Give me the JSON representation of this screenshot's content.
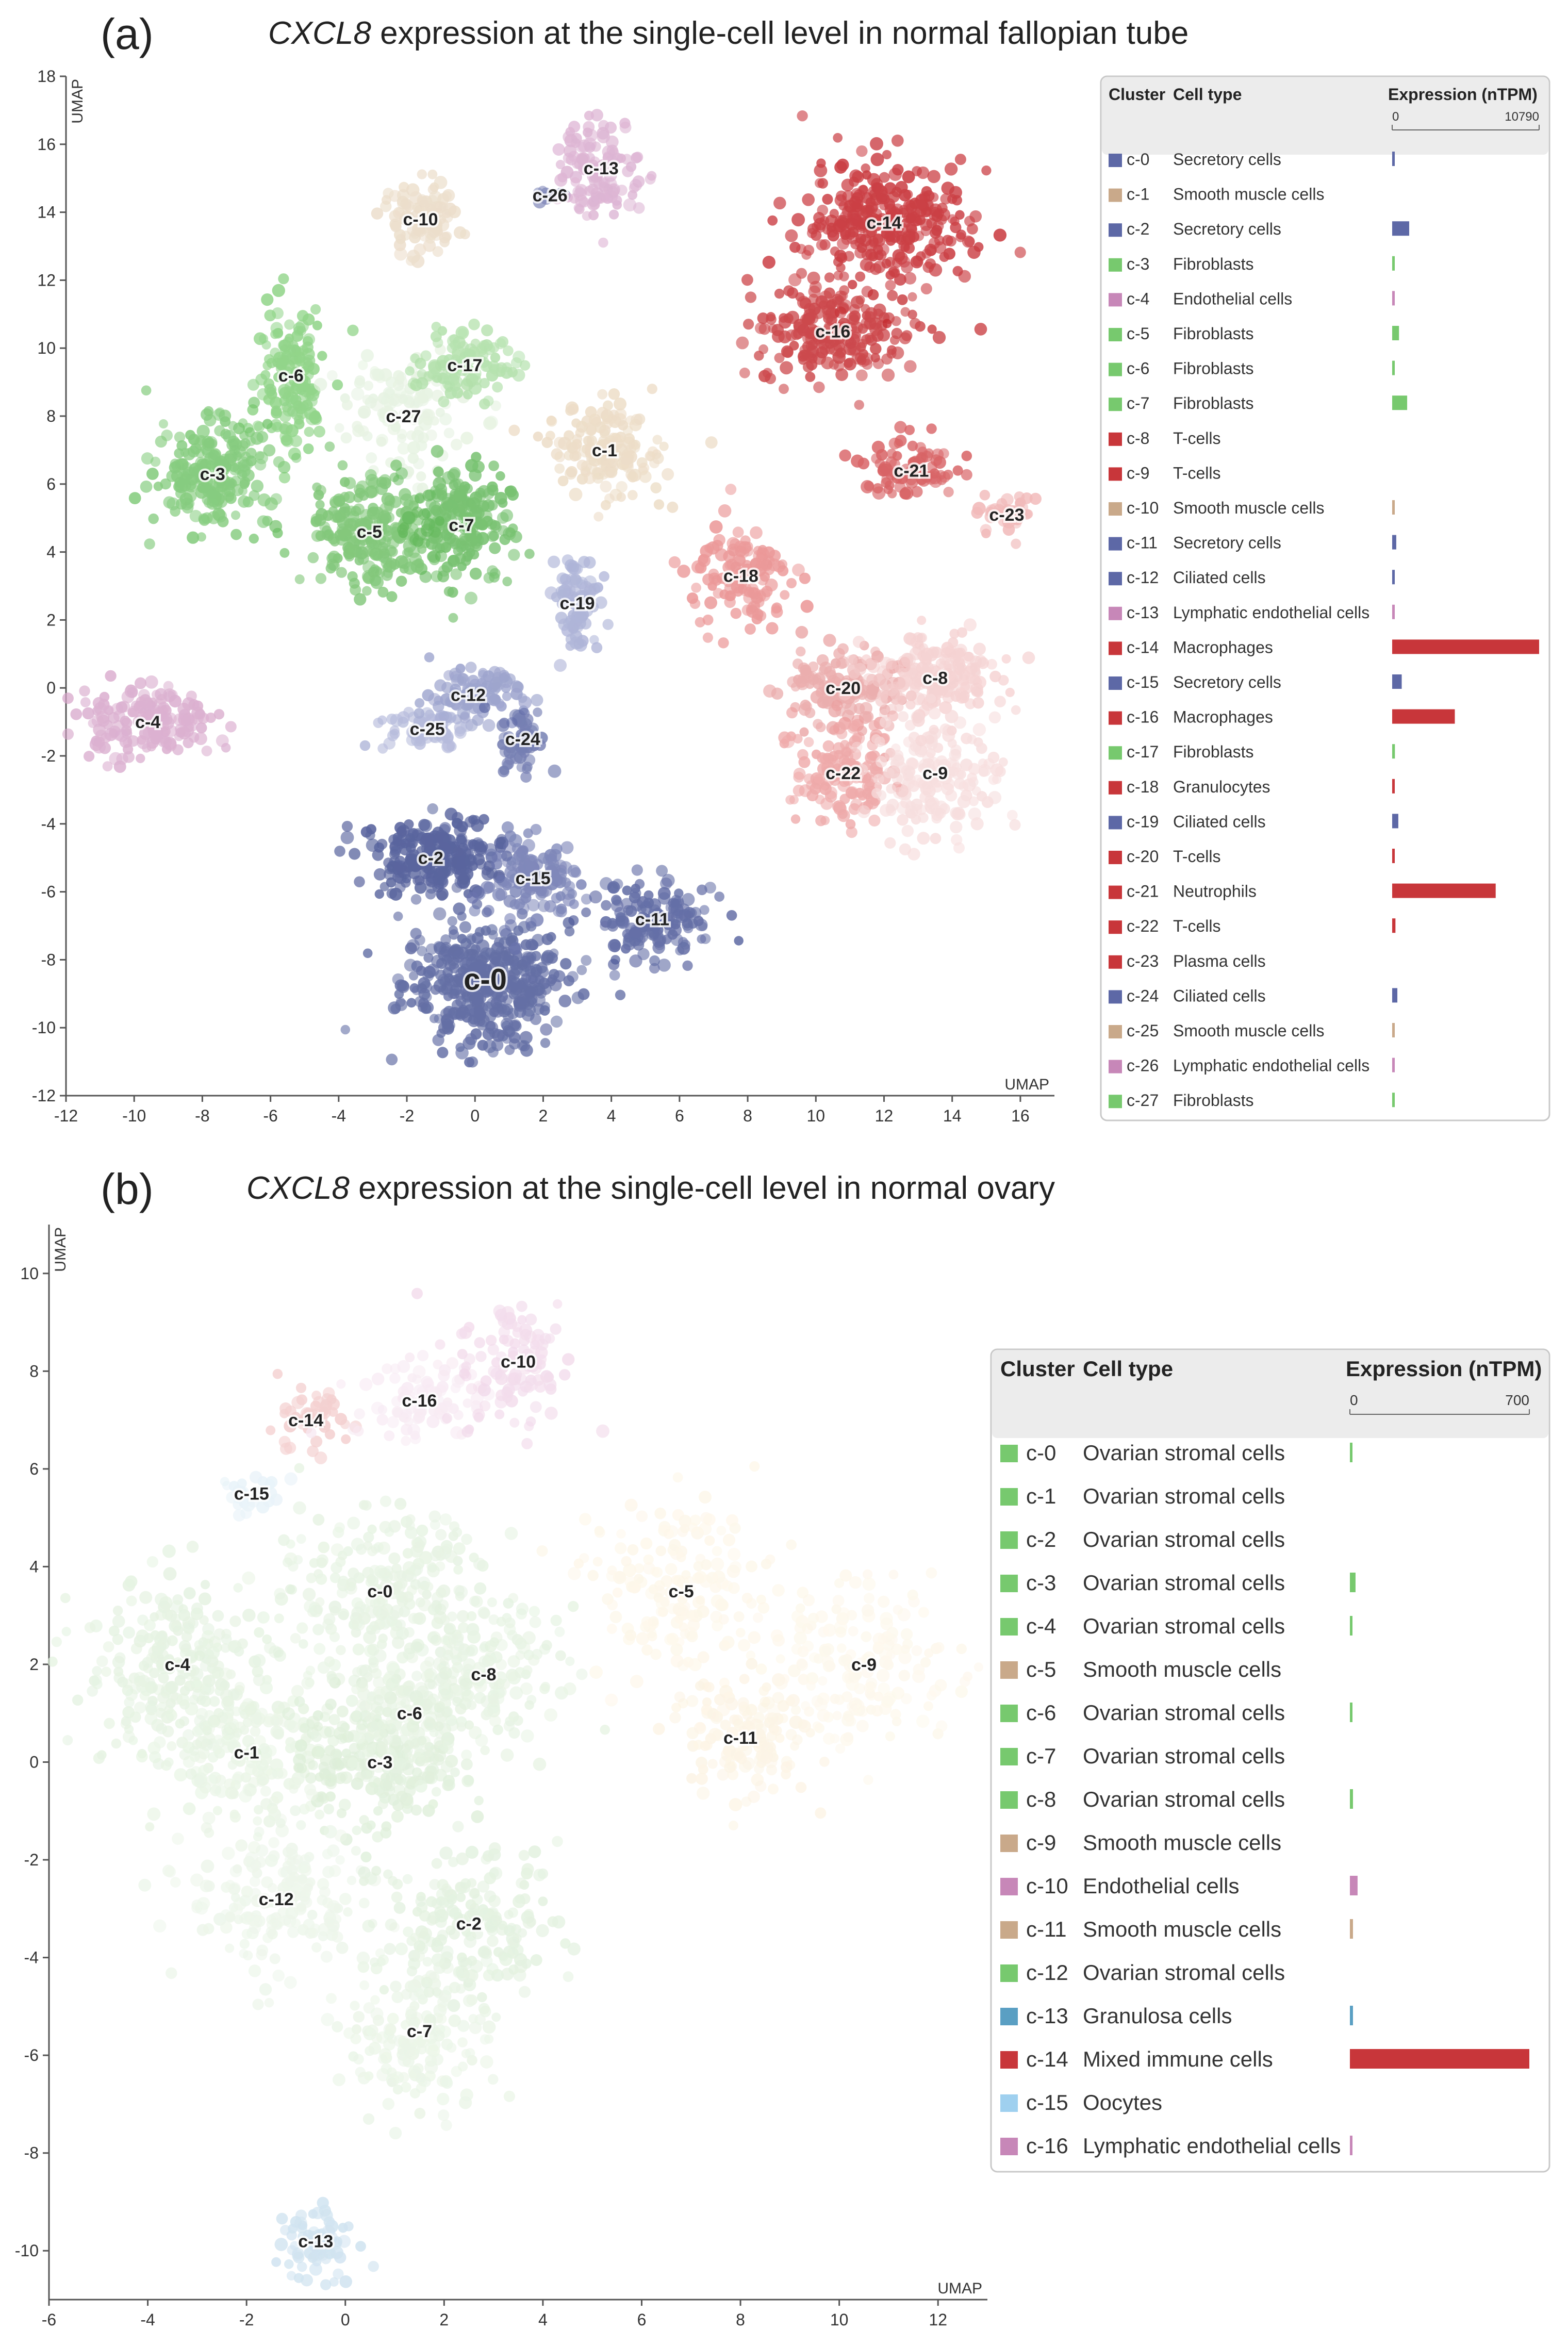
{
  "colors": {
    "secretory": "#5d68a6",
    "smooth_muscle": "#c9a98a",
    "fibroblast": "#77c96e",
    "endothelial": "#c787b8",
    "immune": "#c8363a",
    "ciliated": "#5d68a6",
    "granulosa": "#5a9fc3",
    "oocyte": "#9fd0ef",
    "ovarian_stromal": "#77c96e"
  },
  "chart_data": [
    {
      "type": "scatter",
      "panel_letter": "(a)",
      "title_gene": "CXCL8",
      "title_rest": " expression at the single-cell level in normal fallopian tube",
      "xlabel": "UMAP",
      "ylabel": "UMAP",
      "xlim": [
        -12,
        17
      ],
      "ylim": [
        -12,
        18
      ],
      "xticks": [
        "-12",
        "-10",
        "-8",
        "-6",
        "-4",
        "-2",
        "0",
        "2",
        "4",
        "6",
        "8",
        "10",
        "12",
        "14",
        "16"
      ],
      "yticks": [
        "-12",
        "-10",
        "-8",
        "-6",
        "-4",
        "-2",
        "0",
        "2",
        "4",
        "6",
        "8",
        "10",
        "12",
        "14",
        "16",
        "18"
      ],
      "clusters": [
        {
          "label": "c-0",
          "x": 0.3,
          "y": -8.7,
          "color": "#4a5796",
          "spread": [
            2.2,
            1.6
          ],
          "n": 420,
          "big": true
        },
        {
          "label": "c-2",
          "x": -1.3,
          "y": -5.0,
          "color": "#3e4b8e",
          "spread": [
            1.7,
            1.0
          ],
          "n": 260
        },
        {
          "label": "c-15",
          "x": 1.7,
          "y": -5.6,
          "color": "#6a74ae",
          "spread": [
            1.1,
            1.0
          ],
          "n": 140
        },
        {
          "label": "c-11",
          "x": 5.2,
          "y": -6.8,
          "color": "#4b5798",
          "spread": [
            1.7,
            1.0
          ],
          "n": 160
        },
        {
          "label": "c-12",
          "x": -0.2,
          "y": -0.2,
          "color": "#8e96c6",
          "spread": [
            1.4,
            0.7
          ],
          "n": 110
        },
        {
          "label": "c-25",
          "x": -1.4,
          "y": -1.2,
          "color": "#aab0d6",
          "spread": [
            1.0,
            0.6
          ],
          "n": 70
        },
        {
          "label": "c-24",
          "x": 1.4,
          "y": -1.5,
          "color": "#5f6aa6",
          "spread": [
            0.6,
            0.8
          ],
          "n": 60
        },
        {
          "label": "c-19",
          "x": 3.0,
          "y": 2.5,
          "color": "#a2a9d2",
          "spread": [
            0.6,
            1.4
          ],
          "n": 80
        },
        {
          "label": "c-26",
          "x": 2.2,
          "y": 14.5,
          "color": "#6b74ad",
          "spread": [
            0.3,
            0.2
          ],
          "n": 10
        },
        {
          "label": "c-1",
          "x": 3.8,
          "y": 7.0,
          "color": "#ead8bf",
          "spread": [
            1.6,
            1.2
          ],
          "n": 160
        },
        {
          "label": "c-10",
          "x": -1.6,
          "y": 13.8,
          "color": "#e9d9c3",
          "spread": [
            1.0,
            1.0
          ],
          "n": 100
        },
        {
          "label": "c-13",
          "x": 3.7,
          "y": 15.3,
          "color": "#d8a9cd",
          "spread": [
            1.2,
            1.3
          ],
          "n": 120
        },
        {
          "label": "c-4",
          "x": -9.6,
          "y": -1.0,
          "color": "#d6a4c9",
          "spread": [
            1.8,
            1.0
          ],
          "n": 170
        },
        {
          "label": "c-6",
          "x": -5.4,
          "y": 9.2,
          "color": "#7fce76",
          "spread": [
            1.0,
            2.0
          ],
          "n": 150
        },
        {
          "label": "c-3",
          "x": -7.7,
          "y": 6.3,
          "color": "#72c46a",
          "spread": [
            1.5,
            1.4
          ],
          "n": 220
        },
        {
          "label": "c-27",
          "x": -2.1,
          "y": 8.0,
          "color": "#e3f1de",
          "spread": [
            1.8,
            1.6
          ],
          "n": 130
        },
        {
          "label": "c-17",
          "x": -0.3,
          "y": 9.5,
          "color": "#a9dda1",
          "spread": [
            1.3,
            0.9
          ],
          "n": 110
        },
        {
          "label": "c-5",
          "x": -3.1,
          "y": 4.6,
          "color": "#6fbf66",
          "spread": [
            1.7,
            1.5
          ],
          "n": 240
        },
        {
          "label": "c-7",
          "x": -0.4,
          "y": 4.8,
          "color": "#62b85a",
          "spread": [
            1.3,
            1.5
          ],
          "n": 200
        },
        {
          "label": "c-14",
          "x": 12.0,
          "y": 13.7,
          "color": "#c21f25",
          "spread": [
            2.2,
            1.6
          ],
          "n": 320
        },
        {
          "label": "c-16",
          "x": 10.5,
          "y": 10.5,
          "color": "#c42a2e",
          "spread": [
            2.2,
            1.3
          ],
          "n": 220
        },
        {
          "label": "c-21",
          "x": 12.8,
          "y": 6.4,
          "color": "#d2494c",
          "spread": [
            1.2,
            0.9
          ],
          "n": 80
        },
        {
          "label": "c-23",
          "x": 15.6,
          "y": 5.1,
          "color": "#efaeae",
          "spread": [
            0.8,
            0.5
          ],
          "n": 40
        },
        {
          "label": "c-18",
          "x": 7.8,
          "y": 3.3,
          "color": "#e88888",
          "spread": [
            1.3,
            1.4
          ],
          "n": 120
        },
        {
          "label": "c-20",
          "x": 10.8,
          "y": 0.0,
          "color": "#e8a0a0",
          "spread": [
            1.4,
            1.0
          ],
          "n": 140
        },
        {
          "label": "c-8",
          "x": 13.5,
          "y": 0.3,
          "color": "#f4cccc",
          "spread": [
            1.8,
            1.2
          ],
          "n": 180
        },
        {
          "label": "c-22",
          "x": 10.8,
          "y": -2.5,
          "color": "#ec9c9c",
          "spread": [
            1.3,
            1.4
          ],
          "n": 140
        },
        {
          "label": "c-9",
          "x": 13.5,
          "y": -2.5,
          "color": "#f6dada",
          "spread": [
            1.8,
            1.6
          ],
          "n": 180
        }
      ],
      "legend": {
        "col_cluster": "Cluster",
        "col_celltype": "Cell type",
        "col_expression": "Expression (nTPM)",
        "scale_min": "0",
        "scale_max": "10790",
        "max_value": 10790,
        "rows": [
          {
            "cluster": "c-0",
            "cell_type": "Secretory cells",
            "group": "secretory",
            "value": 180
          },
          {
            "cluster": "c-1",
            "cell_type": "Smooth muscle cells",
            "group": "smooth_muscle",
            "value": 0
          },
          {
            "cluster": "c-2",
            "cell_type": "Secretory cells",
            "group": "secretory",
            "value": 1250
          },
          {
            "cluster": "c-3",
            "cell_type": "Fibroblasts",
            "group": "fibroblast",
            "value": 120
          },
          {
            "cluster": "c-4",
            "cell_type": "Endothelial cells",
            "group": "endothelial",
            "value": 60
          },
          {
            "cluster": "c-5",
            "cell_type": "Fibroblasts",
            "group": "fibroblast",
            "value": 500
          },
          {
            "cluster": "c-6",
            "cell_type": "Fibroblasts",
            "group": "fibroblast",
            "value": 100
          },
          {
            "cluster": "c-7",
            "cell_type": "Fibroblasts",
            "group": "fibroblast",
            "value": 1100
          },
          {
            "cluster": "c-8",
            "cell_type": "T-cells",
            "group": "immune",
            "value": 0
          },
          {
            "cluster": "c-9",
            "cell_type": "T-cells",
            "group": "immune",
            "value": 0
          },
          {
            "cluster": "c-10",
            "cell_type": "Smooth muscle cells",
            "group": "smooth_muscle",
            "value": 60
          },
          {
            "cluster": "c-11",
            "cell_type": "Secretory cells",
            "group": "secretory",
            "value": 300
          },
          {
            "cluster": "c-12",
            "cell_type": "Ciliated cells",
            "group": "ciliated",
            "value": 120
          },
          {
            "cluster": "c-13",
            "cell_type": "Lymphatic endothelial cells",
            "group": "endothelial",
            "value": 60
          },
          {
            "cluster": "c-14",
            "cell_type": "Macrophages",
            "group": "immune",
            "value": 10790
          },
          {
            "cluster": "c-15",
            "cell_type": "Secretory cells",
            "group": "secretory",
            "value": 700
          },
          {
            "cluster": "c-16",
            "cell_type": "Macrophages",
            "group": "immune",
            "value": 4600
          },
          {
            "cluster": "c-17",
            "cell_type": "Fibroblasts",
            "group": "fibroblast",
            "value": 200
          },
          {
            "cluster": "c-18",
            "cell_type": "Granulocytes",
            "group": "immune",
            "value": 150
          },
          {
            "cluster": "c-19",
            "cell_type": "Ciliated cells",
            "group": "ciliated",
            "value": 450
          },
          {
            "cluster": "c-20",
            "cell_type": "T-cells",
            "group": "immune",
            "value": 120
          },
          {
            "cluster": "c-21",
            "cell_type": "Neutrophils",
            "group": "immune",
            "value": 7600
          },
          {
            "cluster": "c-22",
            "cell_type": "T-cells",
            "group": "immune",
            "value": 240
          },
          {
            "cluster": "c-23",
            "cell_type": "Plasma cells",
            "group": "immune",
            "value": 0
          },
          {
            "cluster": "c-24",
            "cell_type": "Ciliated cells",
            "group": "ciliated",
            "value": 380
          },
          {
            "cluster": "c-25",
            "cell_type": "Smooth muscle cells",
            "group": "smooth_muscle",
            "value": 60
          },
          {
            "cluster": "c-26",
            "cell_type": "Lymphatic endothelial cells",
            "group": "endothelial",
            "value": 60
          },
          {
            "cluster": "c-27",
            "cell_type": "Fibroblasts",
            "group": "fibroblast",
            "value": 90
          }
        ]
      }
    },
    {
      "type": "scatter",
      "panel_letter": "(b)",
      "title_gene": "CXCL8",
      "title_rest": " expression at the single-cell level in normal ovary",
      "xlabel": "UMAP",
      "ylabel": "UMAP",
      "xlim": [
        -6,
        13
      ],
      "ylim": [
        -11,
        11
      ],
      "xticks": [
        "-6",
        "-4",
        "-2",
        "0",
        "2",
        "4",
        "6",
        "8",
        "10",
        "12"
      ],
      "yticks": [
        "-10",
        "-8",
        "-6",
        "-4",
        "-2",
        "0",
        "2",
        "4",
        "6",
        "8",
        "10"
      ],
      "clusters": [
        {
          "label": "c-0",
          "x": 0.7,
          "y": 3.5,
          "color": "#e4f2e0",
          "spread": [
            2.0,
            1.6
          ],
          "n": 260
        },
        {
          "label": "c-4",
          "x": -3.4,
          "y": 2.0,
          "color": "#e2f1de",
          "spread": [
            1.7,
            1.6
          ],
          "n": 240
        },
        {
          "label": "c-1",
          "x": -2.0,
          "y": 0.2,
          "color": "#e7f4e3",
          "spread": [
            1.7,
            1.4
          ],
          "n": 220
        },
        {
          "label": "c-3",
          "x": 0.7,
          "y": 0.0,
          "color": "#dceed7",
          "spread": [
            1.5,
            1.2
          ],
          "n": 200
        },
        {
          "label": "c-6",
          "x": 1.3,
          "y": 1.0,
          "color": "#e6f3e2",
          "spread": [
            1.2,
            1.0
          ],
          "n": 150
        },
        {
          "label": "c-8",
          "x": 2.8,
          "y": 1.8,
          "color": "#e4f2e0",
          "spread": [
            1.4,
            1.2
          ],
          "n": 170
        },
        {
          "label": "c-12",
          "x": -1.4,
          "y": -2.8,
          "color": "#ebf5e8",
          "spread": [
            1.6,
            1.4
          ],
          "n": 190
        },
        {
          "label": "c-2",
          "x": 2.5,
          "y": -3.3,
          "color": "#e0f0dc",
          "spread": [
            1.6,
            1.4
          ],
          "n": 190
        },
        {
          "label": "c-7",
          "x": 1.5,
          "y": -5.5,
          "color": "#e8f4e4",
          "spread": [
            1.4,
            1.4
          ],
          "n": 170
        },
        {
          "label": "c-13",
          "x": -0.6,
          "y": -9.8,
          "color": "#c9dfee",
          "spread": [
            0.7,
            0.7
          ],
          "n": 70
        },
        {
          "label": "c-15",
          "x": -1.9,
          "y": 5.5,
          "color": "#e5f1f8",
          "spread": [
            0.6,
            0.4
          ],
          "n": 30
        },
        {
          "label": "c-14",
          "x": -0.8,
          "y": 7.0,
          "color": "#f2c8c8",
          "spread": [
            0.7,
            0.6
          ],
          "n": 50
        },
        {
          "label": "c-16",
          "x": 1.5,
          "y": 7.4,
          "color": "#f7e8f2",
          "spread": [
            1.2,
            0.8
          ],
          "n": 90
        },
        {
          "label": "c-10",
          "x": 3.5,
          "y": 8.2,
          "color": "#f1d7e9",
          "spread": [
            1.1,
            1.2
          ],
          "n": 110
        },
        {
          "label": "c-5",
          "x": 6.8,
          "y": 3.5,
          "color": "#fdf6e7",
          "spread": [
            1.7,
            1.7
          ],
          "n": 180
        },
        {
          "label": "c-11",
          "x": 8.0,
          "y": 0.5,
          "color": "#fcf3e2",
          "spread": [
            1.3,
            1.1
          ],
          "n": 140
        },
        {
          "label": "c-9",
          "x": 10.5,
          "y": 2.0,
          "color": "#fdf7ea",
          "spread": [
            1.7,
            1.4
          ],
          "n": 170
        }
      ],
      "legend": {
        "col_cluster": "Cluster",
        "col_celltype": "Cell type",
        "col_expression": "Expression (nTPM)",
        "scale_min": "0",
        "scale_max": "700",
        "max_value": 700,
        "rows": [
          {
            "cluster": "c-0",
            "cell_type": "Ovarian stromal cells",
            "group": "ovarian_stromal",
            "value": 8
          },
          {
            "cluster": "c-1",
            "cell_type": "Ovarian stromal cells",
            "group": "ovarian_stromal",
            "value": 0
          },
          {
            "cluster": "c-2",
            "cell_type": "Ovarian stromal cells",
            "group": "ovarian_stromal",
            "value": 0
          },
          {
            "cluster": "c-3",
            "cell_type": "Ovarian stromal cells",
            "group": "ovarian_stromal",
            "value": 22
          },
          {
            "cluster": "c-4",
            "cell_type": "Ovarian stromal cells",
            "group": "ovarian_stromal",
            "value": 8
          },
          {
            "cluster": "c-5",
            "cell_type": "Smooth muscle cells",
            "group": "smooth_muscle",
            "value": 0
          },
          {
            "cluster": "c-6",
            "cell_type": "Ovarian stromal cells",
            "group": "ovarian_stromal",
            "value": 8
          },
          {
            "cluster": "c-7",
            "cell_type": "Ovarian stromal cells",
            "group": "ovarian_stromal",
            "value": 0
          },
          {
            "cluster": "c-8",
            "cell_type": "Ovarian stromal cells",
            "group": "ovarian_stromal",
            "value": 12
          },
          {
            "cluster": "c-9",
            "cell_type": "Smooth muscle cells",
            "group": "smooth_muscle",
            "value": 0
          },
          {
            "cluster": "c-10",
            "cell_type": "Endothelial cells",
            "group": "endothelial",
            "value": 30
          },
          {
            "cluster": "c-11",
            "cell_type": "Smooth muscle cells",
            "group": "smooth_muscle",
            "value": 12
          },
          {
            "cluster": "c-12",
            "cell_type": "Ovarian stromal cells",
            "group": "ovarian_stromal",
            "value": 0
          },
          {
            "cluster": "c-13",
            "cell_type": "Granulosa cells",
            "group": "granulosa",
            "value": 12
          },
          {
            "cluster": "c-14",
            "cell_type": "Mixed immune cells",
            "group": "immune",
            "value": 700
          },
          {
            "cluster": "c-15",
            "cell_type": "Oocytes",
            "group": "oocyte",
            "value": 0
          },
          {
            "cluster": "c-16",
            "cell_type": "Lymphatic endothelial cells",
            "group": "endothelial",
            "value": 6
          }
        ]
      }
    }
  ]
}
